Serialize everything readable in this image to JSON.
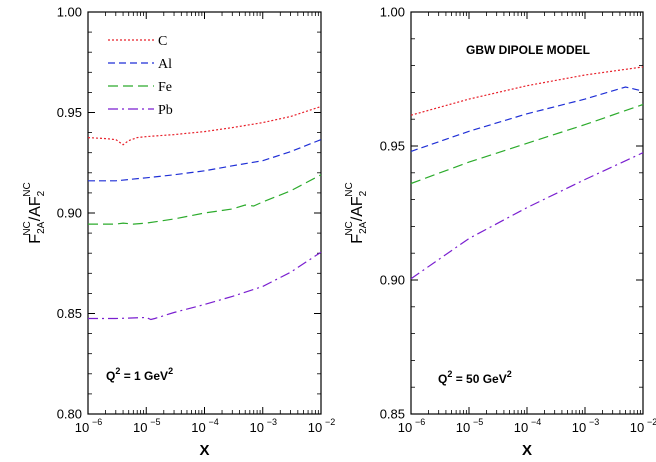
{
  "chart_data": [
    {
      "type": "line",
      "xlabel": "X",
      "ylabel": {
        "main": "F",
        "sub1": "2A",
        "sup1": "NC",
        "mid": "/AF",
        "sub2": "2",
        "sup2": "NC"
      },
      "xscale": "log",
      "xlim": [
        1e-06,
        0.01
      ],
      "ylim": [
        0.8,
        1.0
      ],
      "xticks": [
        {
          "value": 1e-06,
          "base": "10",
          "exp": "−6"
        },
        {
          "value": 1e-05,
          "base": "10",
          "exp": "−5"
        },
        {
          "value": 0.0001,
          "base": "10",
          "exp": "−4"
        },
        {
          "value": 0.001,
          "base": "10",
          "exp": "−3"
        },
        {
          "value": 0.01,
          "base": "10",
          "exp": "−2"
        }
      ],
      "yticks": [
        {
          "value": 0.8,
          "label": "0.80"
        },
        {
          "value": 0.85,
          "label": "0.85"
        },
        {
          "value": 0.9,
          "label": "0.90"
        },
        {
          "value": 0.95,
          "label": "0.95"
        },
        {
          "value": 1.0,
          "label": "1.00"
        }
      ],
      "legend": {
        "placement": "top-left"
      },
      "annotation": {
        "pre": "Q",
        "sup1": "2",
        "mid": " = 1 GeV",
        "sup2": "2"
      },
      "series": [
        {
          "name": "C",
          "color": "#e8202a",
          "dash": "2,2",
          "x": [
            1e-06,
            2e-06,
            3e-06,
            4e-06,
            5e-06,
            7e-06,
            1e-05,
            3e-05,
            0.0001,
            0.0003,
            0.001,
            0.003,
            0.01
          ],
          "y": [
            0.9375,
            0.937,
            0.9365,
            0.934,
            0.936,
            0.9375,
            0.938,
            0.939,
            0.9405,
            0.9425,
            0.945,
            0.948,
            0.953
          ]
        },
        {
          "name": "Al",
          "color": "#1f2fd6",
          "dash": "7,4",
          "x": [
            1e-06,
            3e-06,
            1e-05,
            3e-05,
            0.0001,
            0.0003,
            0.001,
            0.003,
            0.01
          ],
          "y": [
            0.916,
            0.916,
            0.9175,
            0.919,
            0.921,
            0.9235,
            0.926,
            0.9305,
            0.9365
          ]
        },
        {
          "name": "Fe",
          "color": "#2cab2c",
          "dash": "10,5",
          "x": [
            1e-06,
            3e-06,
            4e-06,
            6e-06,
            1e-05,
            3e-05,
            0.0001,
            0.0003,
            0.0005,
            0.0007,
            0.001,
            0.003,
            0.01
          ],
          "y": [
            0.8945,
            0.8945,
            0.895,
            0.8945,
            0.895,
            0.897,
            0.9,
            0.902,
            0.904,
            0.9035,
            0.9055,
            0.911,
            0.919
          ]
        },
        {
          "name": "Pb",
          "color": "#7a1fd0",
          "dash": "10,4,2,4",
          "x": [
            1e-06,
            3e-06,
            1e-05,
            1.2e-05,
            1.4e-05,
            3e-05,
            0.0001,
            0.0003,
            0.001,
            0.003,
            0.01
          ],
          "y": [
            0.8475,
            0.8475,
            0.848,
            0.847,
            0.8475,
            0.8505,
            0.8545,
            0.8585,
            0.8635,
            0.8705,
            0.8805
          ]
        }
      ]
    },
    {
      "type": "line",
      "title": "GBW DIPOLE MODEL",
      "xlabel": "X",
      "ylabel": {
        "main": "F",
        "sub1": "2A",
        "sup1": "NC",
        "mid": "/AF",
        "sub2": "2",
        "sup2": "NC"
      },
      "xscale": "log",
      "xlim": [
        1e-06,
        0.01
      ],
      "ylim": [
        0.85,
        1.0
      ],
      "xticks": [
        {
          "value": 1e-06,
          "base": "10",
          "exp": "−6"
        },
        {
          "value": 1e-05,
          "base": "10",
          "exp": "−5"
        },
        {
          "value": 0.0001,
          "base": "10",
          "exp": "−4"
        },
        {
          "value": 0.001,
          "base": "10",
          "exp": "−3"
        },
        {
          "value": 0.01,
          "base": "10",
          "exp": "−2"
        }
      ],
      "yticks": [
        {
          "value": 0.85,
          "label": "0.85"
        },
        {
          "value": 0.9,
          "label": "0.90"
        },
        {
          "value": 0.95,
          "label": "0.95"
        },
        {
          "value": 1.0,
          "label": "1.00"
        }
      ],
      "annotation": {
        "pre": "Q",
        "sup1": "2",
        "mid": " = 50 GeV",
        "sup2": "2"
      },
      "series": [
        {
          "color": "#e8202a",
          "dash": "2,2",
          "x": [
            1e-06,
            1e-05,
            0.0001,
            0.001,
            0.01
          ],
          "y": [
            0.9615,
            0.9675,
            0.9725,
            0.9765,
            0.9795
          ]
        },
        {
          "color": "#1f2fd6",
          "dash": "7,4",
          "x": [
            1e-06,
            1e-05,
            0.0001,
            0.001,
            0.005,
            0.01
          ],
          "y": [
            0.948,
            0.9555,
            0.962,
            0.9675,
            0.972,
            0.9705
          ]
        },
        {
          "color": "#2cab2c",
          "dash": "10,5",
          "x": [
            1e-06,
            1e-05,
            0.0001,
            0.001,
            0.01
          ],
          "y": [
            0.936,
            0.944,
            0.951,
            0.958,
            0.9655
          ]
        },
        {
          "color": "#7a1fd0",
          "dash": "10,4,2,4",
          "x": [
            1e-06,
            1e-05,
            0.0001,
            0.001,
            0.01
          ],
          "y": [
            0.9005,
            0.9155,
            0.927,
            0.9375,
            0.9475
          ]
        }
      ]
    }
  ]
}
